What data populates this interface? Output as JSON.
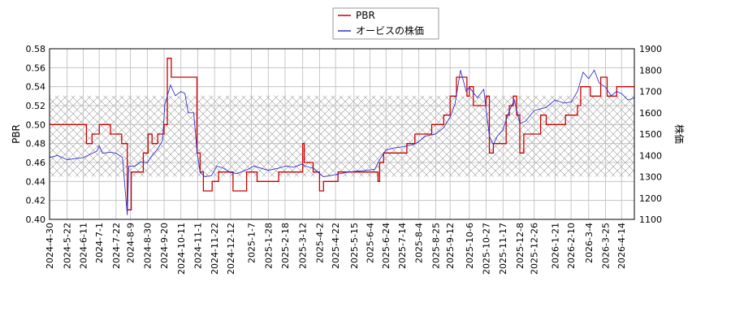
{
  "chart_data": {
    "type": "line",
    "legend": {
      "placement": "top-center",
      "items": [
        "PBR",
        "オービスの株価"
      ]
    },
    "y_left": {
      "label": "PBR",
      "range": [
        0.4,
        0.58
      ],
      "ticks": [
        "0.40",
        "0.42",
        "0.44",
        "0.46",
        "0.48",
        "0.50",
        "0.52",
        "0.54",
        "0.56",
        "0.58"
      ]
    },
    "y_right": {
      "label": "株価",
      "range": [
        1100,
        1900
      ],
      "ticks": [
        "1100",
        "1200",
        "1300",
        "1400",
        "1500",
        "1600",
        "1700",
        "1800",
        "1900"
      ]
    },
    "x_range": [
      "2024-04-30",
      "2026-04-30"
    ],
    "x_ticks": [
      "2024-4-30",
      "2024-5-22",
      "2024-6-11",
      "2024-7-1",
      "2024-7-22",
      "2024-8-9",
      "2024-8-30",
      "2024-9-20",
      "2024-10-11",
      "2024-11-1",
      "2024-11-22",
      "2024-12-12",
      "2025-1-7",
      "2025-1-28",
      "2025-2-18",
      "2025-3-12",
      "2025-4-2",
      "2025-4-22",
      "2025-5-15",
      "2025-6-4",
      "2025-6-24",
      "2025-7-14",
      "2025-8-4",
      "2025-8-25",
      "2025-9-12",
      "2025-10-6",
      "2025-10-27",
      "2025-11-17",
      "2025-12-8",
      "2025-12-26",
      "2026-1-21",
      "2026-2-10",
      "2026-3-4",
      "2026-3-25",
      "2026-4-14"
    ],
    "grid": true,
    "band": {
      "axis": "right",
      "range": [
        1300,
        1680
      ],
      "pattern": "crosshatch"
    },
    "colors": {
      "pbr": "#cc0000",
      "price": "#3333cc",
      "grid": "#bbbbbb",
      "band": "#9a9a9a"
    },
    "series": [
      {
        "name": "PBR",
        "axis": "left",
        "step": true,
        "points": [
          [
            "2024-04-30",
            0.5
          ],
          [
            "2024-06-15",
            0.48
          ],
          [
            "2024-06-22",
            0.49
          ],
          [
            "2024-07-01",
            0.5
          ],
          [
            "2024-07-15",
            0.49
          ],
          [
            "2024-07-29",
            0.48
          ],
          [
            "2024-08-05",
            0.41
          ],
          [
            "2024-08-10",
            0.45
          ],
          [
            "2024-08-25",
            0.47
          ],
          [
            "2024-08-31",
            0.49
          ],
          [
            "2024-09-05",
            0.48
          ],
          [
            "2024-09-12",
            0.49
          ],
          [
            "2024-09-20",
            0.5
          ],
          [
            "2024-09-24",
            0.57
          ],
          [
            "2024-09-29",
            0.55
          ],
          [
            "2024-10-14",
            0.55
          ],
          [
            "2024-10-27",
            0.55
          ],
          [
            "2024-10-31",
            0.47
          ],
          [
            "2024-11-04",
            0.45
          ],
          [
            "2024-11-08",
            0.43
          ],
          [
            "2024-11-19",
            0.44
          ],
          [
            "2024-11-27",
            0.45
          ],
          [
            "2024-12-15",
            0.43
          ],
          [
            "2025-01-01",
            0.45
          ],
          [
            "2025-01-14",
            0.44
          ],
          [
            "2025-02-01",
            0.44
          ],
          [
            "2025-02-10",
            0.45
          ],
          [
            "2025-03-10",
            0.45
          ],
          [
            "2025-03-12",
            0.48
          ],
          [
            "2025-03-14",
            0.46
          ],
          [
            "2025-03-25",
            0.45
          ],
          [
            "2025-04-02",
            0.43
          ],
          [
            "2025-04-07",
            0.44
          ],
          [
            "2025-04-25",
            0.45
          ],
          [
            "2025-05-20",
            0.45
          ],
          [
            "2025-06-04",
            0.45
          ],
          [
            "2025-06-14",
            0.44
          ],
          [
            "2025-06-16",
            0.46
          ],
          [
            "2025-06-21",
            0.47
          ],
          [
            "2025-07-04",
            0.47
          ],
          [
            "2025-07-20",
            0.48
          ],
          [
            "2025-07-30",
            0.49
          ],
          [
            "2025-08-08",
            0.49
          ],
          [
            "2025-08-20",
            0.5
          ],
          [
            "2025-08-27",
            0.5
          ],
          [
            "2025-09-04",
            0.51
          ],
          [
            "2025-09-12",
            0.53
          ],
          [
            "2025-09-20",
            0.55
          ],
          [
            "2025-10-03",
            0.53
          ],
          [
            "2025-10-06",
            0.54
          ],
          [
            "2025-10-11",
            0.52
          ],
          [
            "2025-10-22",
            0.52
          ],
          [
            "2025-10-27",
            0.53
          ],
          [
            "2025-10-31",
            0.47
          ],
          [
            "2025-11-05",
            0.48
          ],
          [
            "2025-11-17",
            0.48
          ],
          [
            "2025-11-21",
            0.51
          ],
          [
            "2025-11-25",
            0.52
          ],
          [
            "2025-11-30",
            0.53
          ],
          [
            "2025-12-04",
            0.51
          ],
          [
            "2025-12-08",
            0.47
          ],
          [
            "2025-12-13",
            0.49
          ],
          [
            "2025-12-26",
            0.49
          ],
          [
            "2026-01-03",
            0.51
          ],
          [
            "2026-01-10",
            0.5
          ],
          [
            "2026-01-20",
            0.5
          ],
          [
            "2026-02-03",
            0.51
          ],
          [
            "2026-02-10",
            0.51
          ],
          [
            "2026-02-18",
            0.52
          ],
          [
            "2026-02-22",
            0.54
          ],
          [
            "2026-03-06",
            0.53
          ],
          [
            "2026-03-12",
            0.53
          ],
          [
            "2026-03-19",
            0.55
          ],
          [
            "2026-03-27",
            0.53
          ],
          [
            "2026-04-01",
            0.53
          ],
          [
            "2026-04-08",
            0.54
          ],
          [
            "2026-04-30",
            0.54
          ]
        ]
      },
      {
        "name": "オービスの株価",
        "axis": "right",
        "step": false,
        "points": [
          [
            "2024-04-30",
            1390
          ],
          [
            "2024-05-10",
            1400
          ],
          [
            "2024-05-22",
            1380
          ],
          [
            "2024-06-01",
            1385
          ],
          [
            "2024-06-11",
            1390
          ],
          [
            "2024-06-20",
            1405
          ],
          [
            "2024-06-28",
            1420
          ],
          [
            "2024-07-01",
            1445
          ],
          [
            "2024-07-05",
            1410
          ],
          [
            "2024-07-15",
            1415
          ],
          [
            "2024-07-22",
            1410
          ],
          [
            "2024-07-30",
            1390
          ],
          [
            "2024-08-05",
            1120
          ],
          [
            "2024-08-07",
            1350
          ],
          [
            "2024-08-15",
            1350
          ],
          [
            "2024-08-22",
            1370
          ],
          [
            "2024-08-30",
            1365
          ],
          [
            "2024-09-05",
            1400
          ],
          [
            "2024-09-12",
            1430
          ],
          [
            "2024-09-18",
            1470
          ],
          [
            "2024-09-21",
            1640
          ],
          [
            "2024-09-28",
            1730
          ],
          [
            "2024-10-04",
            1680
          ],
          [
            "2024-10-11",
            1700
          ],
          [
            "2024-10-16",
            1690
          ],
          [
            "2024-10-20",
            1600
          ],
          [
            "2024-10-27",
            1600
          ],
          [
            "2024-10-31",
            1420
          ],
          [
            "2024-11-04",
            1320
          ],
          [
            "2024-11-10",
            1300
          ],
          [
            "2024-11-18",
            1305
          ],
          [
            "2024-11-25",
            1350
          ],
          [
            "2024-12-03",
            1340
          ],
          [
            "2024-12-12",
            1320
          ],
          [
            "2024-12-20",
            1315
          ],
          [
            "2025-01-03",
            1335
          ],
          [
            "2025-01-10",
            1350
          ],
          [
            "2025-01-28",
            1330
          ],
          [
            "2025-02-10",
            1340
          ],
          [
            "2025-02-18",
            1350
          ],
          [
            "2025-03-01",
            1345
          ],
          [
            "2025-03-12",
            1360
          ],
          [
            "2025-03-15",
            1350
          ],
          [
            "2025-03-25",
            1340
          ],
          [
            "2025-04-02",
            1315
          ],
          [
            "2025-04-07",
            1300
          ],
          [
            "2025-04-22",
            1310
          ],
          [
            "2025-05-05",
            1320
          ],
          [
            "2025-05-15",
            1325
          ],
          [
            "2025-06-01",
            1330
          ],
          [
            "2025-06-10",
            1335
          ],
          [
            "2025-06-16",
            1380
          ],
          [
            "2025-06-24",
            1425
          ],
          [
            "2025-07-04",
            1435
          ],
          [
            "2025-07-14",
            1440
          ],
          [
            "2025-07-28",
            1450
          ],
          [
            "2025-08-04",
            1465
          ],
          [
            "2025-08-12",
            1490
          ],
          [
            "2025-08-25",
            1500
          ],
          [
            "2025-09-04",
            1530
          ],
          [
            "2025-09-12",
            1580
          ],
          [
            "2025-09-18",
            1640
          ],
          [
            "2025-09-25",
            1800
          ],
          [
            "2025-10-02",
            1700
          ],
          [
            "2025-10-06",
            1720
          ],
          [
            "2025-10-16",
            1670
          ],
          [
            "2025-10-24",
            1710
          ],
          [
            "2025-10-31",
            1490
          ],
          [
            "2025-11-05",
            1450
          ],
          [
            "2025-11-10",
            1490
          ],
          [
            "2025-11-17",
            1520
          ],
          [
            "2025-11-24",
            1600
          ],
          [
            "2025-12-01",
            1660
          ],
          [
            "2025-12-08",
            1550
          ],
          [
            "2025-12-15",
            1560
          ],
          [
            "2025-12-26",
            1610
          ],
          [
            "2026-01-10",
            1625
          ],
          [
            "2026-01-21",
            1660
          ],
          [
            "2026-02-01",
            1645
          ],
          [
            "2026-02-10",
            1650
          ],
          [
            "2026-02-18",
            1700
          ],
          [
            "2026-02-25",
            1790
          ],
          [
            "2026-03-04",
            1760
          ],
          [
            "2026-03-11",
            1800
          ],
          [
            "2026-03-17",
            1740
          ],
          [
            "2026-03-25",
            1720
          ],
          [
            "2026-04-01",
            1680
          ],
          [
            "2026-04-08",
            1700
          ],
          [
            "2026-04-14",
            1690
          ],
          [
            "2026-04-22",
            1660
          ],
          [
            "2026-04-30",
            1670
          ]
        ]
      }
    ]
  }
}
